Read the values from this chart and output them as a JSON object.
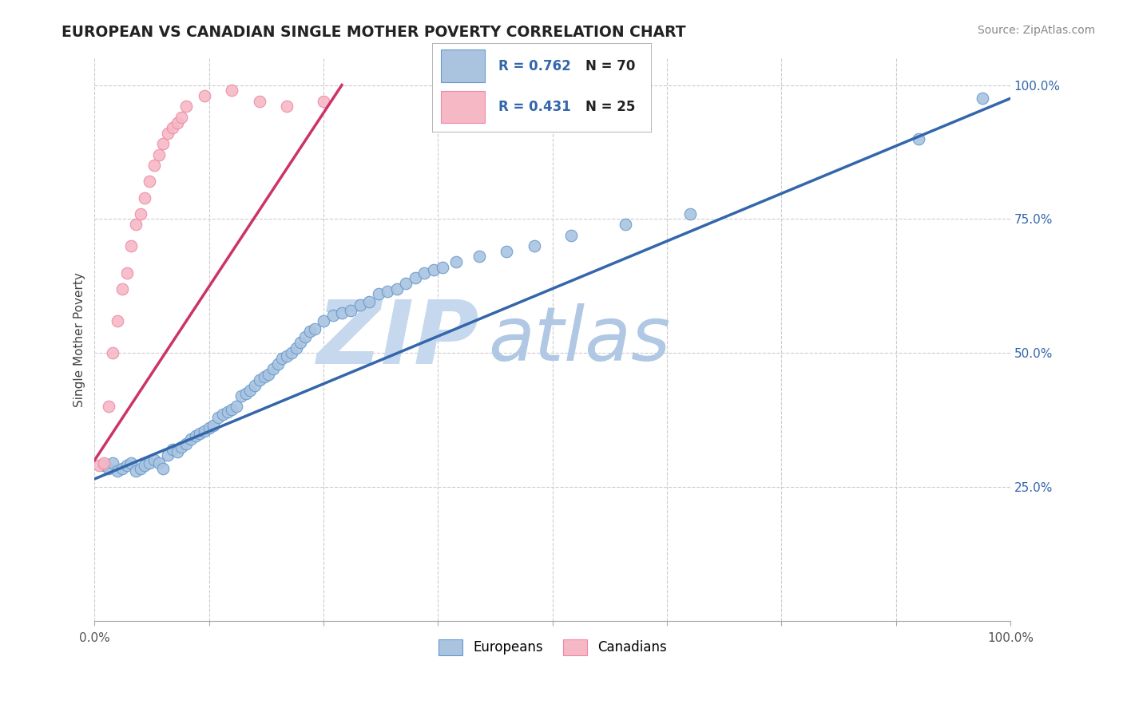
{
  "title": "EUROPEAN VS CANADIAN SINGLE MOTHER POVERTY CORRELATION CHART",
  "source": "Source: ZipAtlas.com",
  "ylabel": "Single Mother Poverty",
  "xlim": [
    0.0,
    1.0
  ],
  "ylim": [
    0.0,
    1.05
  ],
  "x_ticks": [
    0.0,
    0.125,
    0.25,
    0.375,
    0.5,
    0.625,
    0.75,
    0.875,
    1.0
  ],
  "y_ticks": [
    0.0,
    0.25,
    0.5,
    0.75,
    1.0
  ],
  "background_color": "#ffffff",
  "grid_color": "#cccccc",
  "watermark_zip": "ZIP",
  "watermark_atlas": "atlas",
  "watermark_color_zip": "#c5d8ee",
  "watermark_color_atlas": "#b0c8e4",
  "blue_color": "#aac4e0",
  "blue_edge_color": "#6699cc",
  "blue_line_color": "#3366aa",
  "pink_color": "#f5b8c4",
  "pink_edge_color": "#ee88aa",
  "pink_line_color": "#cc3366",
  "legend_R_blue": "R = 0.762",
  "legend_N_blue": "N = 70",
  "legend_R_pink": "R = 0.431",
  "legend_N_pink": "N = 25",
  "blue_scatter_x": [
    0.01,
    0.015,
    0.02,
    0.025,
    0.03,
    0.035,
    0.04,
    0.045,
    0.05,
    0.055,
    0.06,
    0.065,
    0.07,
    0.075,
    0.08,
    0.085,
    0.09,
    0.095,
    0.1,
    0.105,
    0.11,
    0.115,
    0.12,
    0.125,
    0.13,
    0.135,
    0.14,
    0.145,
    0.15,
    0.155,
    0.16,
    0.165,
    0.17,
    0.175,
    0.18,
    0.185,
    0.19,
    0.195,
    0.2,
    0.205,
    0.21,
    0.215,
    0.22,
    0.225,
    0.23,
    0.235,
    0.24,
    0.25,
    0.26,
    0.27,
    0.28,
    0.29,
    0.3,
    0.31,
    0.32,
    0.33,
    0.34,
    0.35,
    0.36,
    0.37,
    0.38,
    0.395,
    0.42,
    0.45,
    0.48,
    0.52,
    0.58,
    0.65,
    0.9,
    0.97
  ],
  "blue_scatter_y": [
    0.29,
    0.285,
    0.295,
    0.28,
    0.285,
    0.29,
    0.295,
    0.28,
    0.285,
    0.29,
    0.295,
    0.3,
    0.295,
    0.285,
    0.31,
    0.32,
    0.315,
    0.325,
    0.33,
    0.34,
    0.345,
    0.35,
    0.355,
    0.36,
    0.365,
    0.38,
    0.385,
    0.39,
    0.395,
    0.4,
    0.42,
    0.425,
    0.43,
    0.44,
    0.45,
    0.455,
    0.46,
    0.47,
    0.48,
    0.49,
    0.495,
    0.5,
    0.51,
    0.52,
    0.53,
    0.54,
    0.545,
    0.56,
    0.57,
    0.575,
    0.58,
    0.59,
    0.595,
    0.61,
    0.615,
    0.62,
    0.63,
    0.64,
    0.65,
    0.655,
    0.66,
    0.67,
    0.68,
    0.69,
    0.7,
    0.72,
    0.74,
    0.76,
    0.9,
    0.975
  ],
  "pink_scatter_x": [
    0.005,
    0.01,
    0.015,
    0.02,
    0.025,
    0.03,
    0.035,
    0.04,
    0.045,
    0.05,
    0.055,
    0.06,
    0.065,
    0.07,
    0.075,
    0.08,
    0.085,
    0.09,
    0.095,
    0.1,
    0.12,
    0.15,
    0.18,
    0.21,
    0.25
  ],
  "pink_scatter_y": [
    0.29,
    0.295,
    0.4,
    0.5,
    0.56,
    0.62,
    0.65,
    0.7,
    0.74,
    0.76,
    0.79,
    0.82,
    0.85,
    0.87,
    0.89,
    0.91,
    0.92,
    0.93,
    0.94,
    0.96,
    0.98,
    0.99,
    0.97,
    0.96,
    0.97
  ],
  "blue_line_x0": 0.0,
  "blue_line_y0": 0.265,
  "blue_line_x1": 1.0,
  "blue_line_y1": 0.975,
  "pink_line_x0": 0.0,
  "pink_line_y0": 0.3,
  "pink_line_x1": 0.27,
  "pink_line_y1": 1.0
}
